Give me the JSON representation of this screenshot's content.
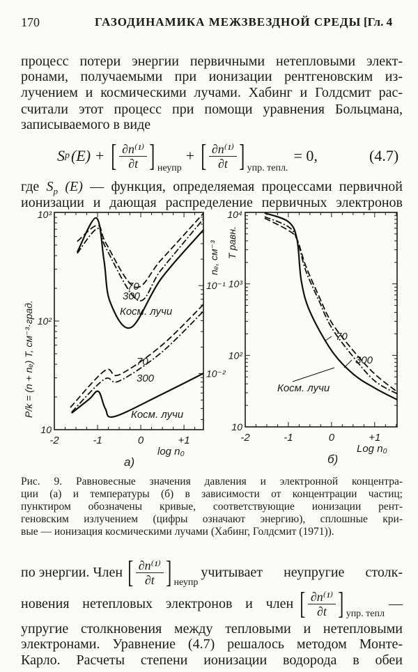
{
  "header": {
    "page_number": "170",
    "running_title": "ГАЗОДИНАМИКА МЕЖЗВЕЗДНОЙ СРЕДЫ",
    "chapter": "[Гл. 4"
  },
  "body_top": [
    "процесс потери энергии первичными нетепловыми элект-",
    "ронами, получаемыми при ионизации рентгеновским из-",
    "лучением и космическими лучами. Хабинг и Голдсмит рас-",
    "считали этот процесс при помощи уравнения Больцмана,",
    "записываемого в виде"
  ],
  "equation": {
    "lhs": "S",
    "lhs_sub": "p",
    "lhs_arg": "(E) +",
    "numerator": "∂n⁽¹⁾",
    "denominator": "∂t",
    "sub1": "неупр",
    "plus": "+",
    "sub2": "упр. тепл.",
    "rhs": "= 0,",
    "number": "(4.7)"
  },
  "body_mid": [
    "где S_p (E) — функция, определяемая процессами первичной",
    "ионизации и дающая распределение первичных электронов"
  ],
  "chart_data": [
    {
      "type": "line",
      "panel_label": "а)",
      "xlabel": "log n₀",
      "ylabel": "P/k = (n + nₑ) T, см⁻³·град.",
      "ylabel_right": "nₑ, см⁻³",
      "x_ticks": [
        "-2",
        "-1",
        "0",
        "+1"
      ],
      "y_ticks": [
        "10",
        "10²",
        "10³"
      ],
      "y_ticks_right": [
        "10⁻¹",
        "10⁻²"
      ],
      "xlim": [
        -2,
        1.45
      ],
      "ylim": [
        10,
        1000
      ],
      "ylim_right": [
        0.0023,
        0.68
      ],
      "yscale": "log",
      "grid": false,
      "series": [
        {
          "name": "70",
          "style": "dashed",
          "group": "upper",
          "x": [
            -1.47,
            -1.0,
            -0.8,
            -0.13,
            0.47,
            1.45
          ],
          "y": [
            540,
            760,
            515,
            205,
            365,
            980
          ]
        },
        {
          "name": "300",
          "style": "dash-dot",
          "group": "upper",
          "x": [
            -1.47,
            -1.0,
            -0.8,
            -0.06,
            0.47,
            1.45
          ],
          "y": [
            420,
            710,
            465,
            155,
            295,
            870
          ]
        },
        {
          "name": "Косм. лучи",
          "style": "solid",
          "group": "upper",
          "x": [
            -1.47,
            -1.03,
            -0.85,
            -0.71,
            -0.23,
            0.47,
            1.45
          ],
          "y": [
            430,
            890,
            360,
            150,
            87,
            245,
            690
          ]
        },
        {
          "name": "70",
          "style": "dashed",
          "group": "lower",
          "x": [
            -1.63,
            -0.83,
            -0.5,
            0.47,
            1.45
          ],
          "y": [
            16,
            35,
            32,
            59,
            142
          ]
        },
        {
          "name": "300",
          "style": "dash-dot",
          "group": "lower",
          "x": [
            -1.6,
            -0.85,
            -0.5,
            0.47,
            1.45
          ],
          "y": [
            14.5,
            29,
            28,
            51,
            123
          ]
        },
        {
          "name": "Косм. лучи",
          "style": "solid",
          "group": "lower",
          "x": [
            -1.6,
            -1.2,
            -0.98,
            -0.82,
            -0.61,
            0.47,
            1.45
          ],
          "y": [
            14.2,
            19,
            22.5,
            15.6,
            13.2,
            21,
            33
          ]
        }
      ]
    },
    {
      "type": "line",
      "panel_label": "б)",
      "xlabel": "Log n₀",
      "ylabel": "T равн.",
      "x_ticks": [
        "-2",
        "-1",
        "0",
        "+1"
      ],
      "y_ticks": [
        "10",
        "10²",
        "10³",
        "10⁴"
      ],
      "xlim": [
        -2,
        1.52
      ],
      "ylim": [
        10,
        10000
      ],
      "yscale": "log",
      "grid": false,
      "series": [
        {
          "name": "70",
          "style": "dashed",
          "x": [
            -1.55,
            -1.0,
            -0.8,
            -0.6,
            -0.3,
            0,
            0.5,
            1.0,
            1.52
          ],
          "y": [
            8300,
            5600,
            4200,
            1800,
            690,
            290,
            117,
            55,
            31
          ]
        },
        {
          "name": "300",
          "style": "dash-dot",
          "x": [
            -1.55,
            -1.0,
            -0.8,
            -0.6,
            -0.3,
            0,
            0.5,
            1.0,
            1.52
          ],
          "y": [
            8700,
            6300,
            4200,
            1550,
            600,
            245,
            96,
            44,
            29
          ]
        },
        {
          "name": "Косм. лучи",
          "style": "solid",
          "x": [
            -1.55,
            -1.0,
            -0.8,
            -0.7,
            -0.5,
            0,
            0.5,
            1.0,
            1.52
          ],
          "y": [
            9800,
            7400,
            4200,
            1100,
            410,
            117,
            55,
            35,
            24
          ]
        }
      ]
    }
  ],
  "caption": [
    "Рис. 9. Равновесные значения давления и электронной концентра-",
    "ции (а) и температуры (б) в зависимости от концентрации частиц;",
    "пунктиром обозначены кривые, соответствующие ионизации рент-",
    "геновским излучением (цифры означают энергию), сплошные кри-",
    "вые — ионизация космическими лучами (Хабинг, Голдсмит (1971))."
  ],
  "body_bottom": {
    "l1_a": "по энергии. Член",
    "l1_sub": "неупр",
    "l1_b": "учитывает неупругие столк-",
    "l2_a": "новения нетепловых электронов и член",
    "l2_sub": "упр. тепл",
    "l2_b": "—",
    "lines": [
      "упругие столкновения между тепловыми и нетепловыми",
      "электронами. Уравнение (4.7) решалось методом Монте-",
      "Карло. Расчеты степени ионизации водорода в обеи"
    ]
  }
}
